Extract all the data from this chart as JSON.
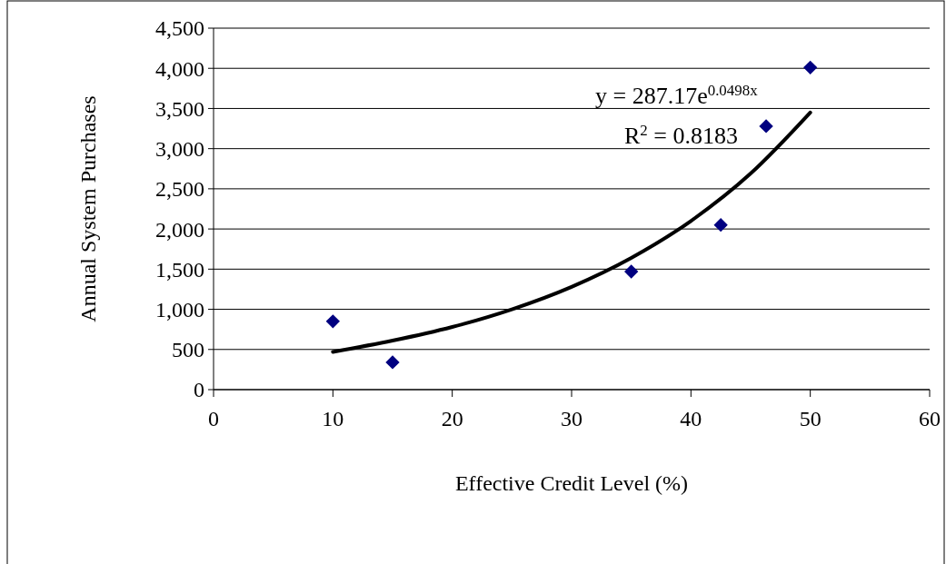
{
  "chart_data": {
    "type": "scatter",
    "xlabel": "Effective Credit Level (%)",
    "ylabel": "Annual System Purchases",
    "xlim": [
      0,
      60
    ],
    "xticks": [
      0,
      10,
      20,
      30,
      40,
      50,
      60
    ],
    "ylim": [
      0,
      4500
    ],
    "yticks": [
      {
        "value": 0,
        "label": "0"
      },
      {
        "value": 500,
        "label": "500"
      },
      {
        "value": 1000,
        "label": "1,000"
      },
      {
        "value": 1500,
        "label": "1,500"
      },
      {
        "value": 2000,
        "label": "2,000"
      },
      {
        "value": 2500,
        "label": "2,500"
      },
      {
        "value": 3000,
        "label": "3,000"
      },
      {
        "value": 3500,
        "label": "3,500"
      },
      {
        "value": 4000,
        "label": "4,000"
      },
      {
        "value": 4500,
        "label": "4,500"
      }
    ],
    "grid": "y",
    "series": [
      {
        "marker": "diamond",
        "color": "#000080",
        "x": [
          10,
          15,
          35,
          42.5,
          46.3,
          50
        ],
        "values": [
          850,
          340,
          1470,
          2050,
          3280,
          4010
        ]
      },
      {
        "type": "line",
        "color": "#000000",
        "x": [
          10,
          15,
          20,
          25,
          30,
          35,
          40,
          45,
          50
        ],
        "values": [
          470,
          610,
          780,
          1000,
          1280,
          1640,
          2100,
          2690,
          3450
        ]
      }
    ],
    "annotations": [
      "y = 287.17e$^{0.0498x}$",
      "R$^{2}$ = 0.8183"
    ]
  }
}
